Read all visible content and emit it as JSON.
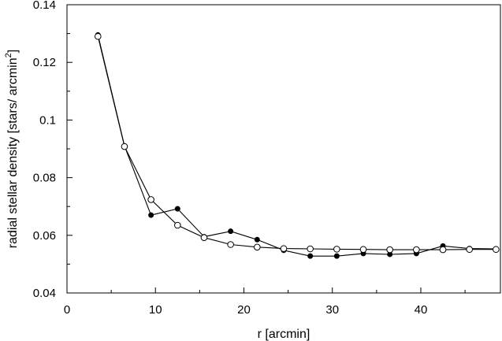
{
  "chart_data": {
    "type": "line",
    "title": "",
    "xlabel": "r [arcmin]",
    "ylabel_main": "radial stellar density [stars/ arcmin",
    "ylabel_sup": "2",
    "ylabel_end": "]",
    "xlim": [
      0,
      49
    ],
    "ylim": [
      0.04,
      0.14
    ],
    "x_ticks": [
      0,
      10,
      20,
      30,
      40
    ],
    "x_tick_labels": [
      "0",
      "10",
      "20",
      "30",
      "40"
    ],
    "x_minor_ticks": [
      5,
      15,
      25,
      35,
      45
    ],
    "y_ticks": [
      0.04,
      0.06,
      0.08,
      0.1,
      0.12,
      0.14
    ],
    "y_tick_labels": [
      "0.04",
      "0.06",
      "0.08",
      "0.1",
      "0.12",
      "0.14"
    ],
    "y_minor_ticks": [
      0.05,
      0.07,
      0.09,
      0.11,
      0.13
    ],
    "grid": false,
    "legend": "none",
    "series": [
      {
        "marker": "filled-circle",
        "color": "#000000",
        "x": [
          3.5,
          6.5,
          9.5,
          12.5,
          15.5,
          18.5,
          21.5,
          24.5,
          27.5,
          30.5,
          33.5,
          36.5,
          39.5,
          42.5,
          45.5,
          48.5
        ],
        "y": [
          0.1295,
          0.091,
          0.067,
          0.0692,
          0.0595,
          0.0614,
          0.0585,
          0.0548,
          0.0528,
          0.0528,
          0.0537,
          0.0534,
          0.0537,
          0.0563,
          0.0554,
          0.0553
        ]
      },
      {
        "marker": "open-circle",
        "color": "#000000",
        "x": [
          3.5,
          6.5,
          9.5,
          12.5,
          15.5,
          18.5,
          21.5,
          24.5,
          27.5,
          30.5,
          33.5,
          36.5,
          39.5,
          42.5,
          45.5,
          48.5
        ],
        "y": [
          0.129,
          0.0908,
          0.0724,
          0.0635,
          0.0592,
          0.0568,
          0.0559,
          0.0554,
          0.0553,
          0.0552,
          0.0551,
          0.055,
          0.055,
          0.055,
          0.0551,
          0.0551
        ]
      }
    ]
  }
}
